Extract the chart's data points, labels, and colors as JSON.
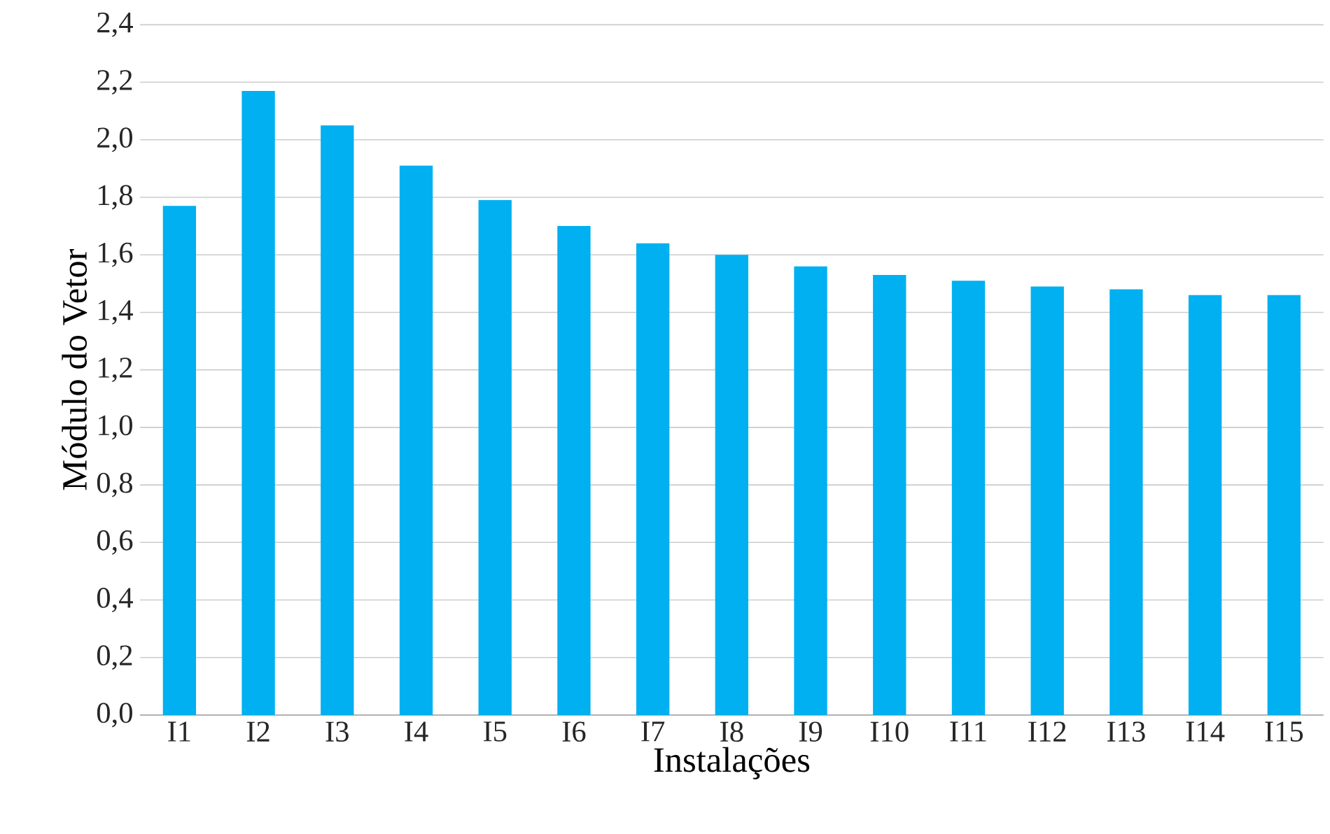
{
  "chart_data": {
    "type": "bar",
    "xlabel": "Instalações",
    "ylabel": "Módulo do Vetor",
    "categories": [
      "I1",
      "I2",
      "I3",
      "I4",
      "I5",
      "I6",
      "I7",
      "I8",
      "I9",
      "I10",
      "I11",
      "I12",
      "I13",
      "I14",
      "I15"
    ],
    "values": [
      1.77,
      2.17,
      2.05,
      1.91,
      1.79,
      1.7,
      1.64,
      1.6,
      1.56,
      1.53,
      1.51,
      1.49,
      1.48,
      1.46,
      1.46
    ],
    "color": "#00b0f0",
    "ylim": [
      0,
      2.4
    ],
    "yticks": [
      {
        "value": 0,
        "label": "0,0"
      },
      {
        "value": 0.2,
        "label": "0,2"
      },
      {
        "value": 0.4,
        "label": "0,4"
      },
      {
        "value": 0.6,
        "label": "0,6"
      },
      {
        "value": 0.8,
        "label": "0,8"
      },
      {
        "value": 1.0,
        "label": "1,0"
      },
      {
        "value": 1.2,
        "label": "1,2"
      },
      {
        "value": 1.4,
        "label": "1,4"
      },
      {
        "value": 1.6,
        "label": "1,6"
      },
      {
        "value": 1.8,
        "label": "1,8"
      },
      {
        "value": 2.0,
        "label": "2,0"
      },
      {
        "value": 2.2,
        "label": "2,2"
      },
      {
        "value": 2.4,
        "label": "2,4"
      }
    ],
    "grid": "y"
  }
}
